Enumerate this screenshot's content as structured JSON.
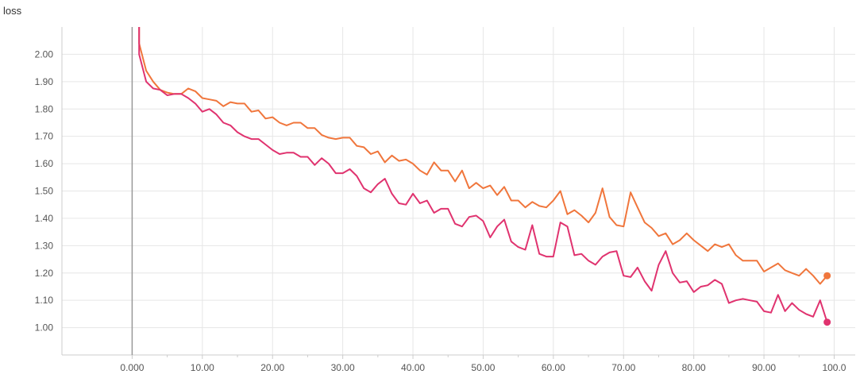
{
  "chart_data": {
    "type": "line",
    "title": "loss",
    "xlim": [
      -10,
      103
    ],
    "ylim": [
      0.9,
      2.1
    ],
    "x_ticks": [
      0,
      10,
      20,
      30,
      40,
      50,
      60,
      70,
      80,
      90,
      100
    ],
    "x_tick_labels": [
      "0.000",
      "10.00",
      "20.00",
      "30.00",
      "40.00",
      "50.00",
      "60.00",
      "70.00",
      "80.00",
      "90.00",
      "100.0"
    ],
    "y_ticks": [
      1.0,
      1.1,
      1.2,
      1.3,
      1.4,
      1.5,
      1.6,
      1.7,
      1.8,
      1.9,
      2.0
    ],
    "y_tick_labels": [
      "1.00",
      "1.10",
      "1.20",
      "1.30",
      "1.40",
      "1.50",
      "1.60",
      "1.70",
      "1.80",
      "1.90",
      "2.00"
    ],
    "grid": true,
    "series": [
      {
        "color": "#f0763c",
        "x": [
          1,
          2,
          3,
          4,
          5,
          6,
          7,
          8,
          9,
          10,
          11,
          12,
          13,
          14,
          15,
          16,
          17,
          18,
          19,
          20,
          21,
          22,
          23,
          24,
          25,
          26,
          27,
          28,
          29,
          30,
          31,
          32,
          33,
          34,
          35,
          36,
          37,
          38,
          39,
          40,
          41,
          42,
          43,
          44,
          45,
          46,
          47,
          48,
          49,
          50,
          51,
          52,
          53,
          54,
          55,
          56,
          57,
          58,
          59,
          60,
          61,
          62,
          63,
          64,
          65,
          66,
          67,
          68,
          69,
          70,
          71,
          72,
          73,
          74,
          75,
          76,
          77,
          78,
          79,
          80,
          81,
          82,
          83,
          84,
          85,
          86,
          87,
          88,
          89,
          90,
          91,
          92,
          93,
          94,
          95,
          96,
          97,
          98,
          99
        ],
        "y": [
          2.04,
          1.94,
          1.9,
          1.87,
          1.86,
          1.855,
          1.855,
          1.875,
          1.865,
          1.84,
          1.835,
          1.83,
          1.81,
          1.825,
          1.82,
          1.82,
          1.79,
          1.795,
          1.765,
          1.77,
          1.75,
          1.74,
          1.75,
          1.75,
          1.73,
          1.73,
          1.705,
          1.695,
          1.69,
          1.695,
          1.695,
          1.665,
          1.66,
          1.635,
          1.645,
          1.605,
          1.63,
          1.61,
          1.615,
          1.6,
          1.575,
          1.56,
          1.605,
          1.575,
          1.575,
          1.535,
          1.575,
          1.51,
          1.53,
          1.51,
          1.52,
          1.485,
          1.515,
          1.465,
          1.465,
          1.44,
          1.46,
          1.445,
          1.44,
          1.465,
          1.5,
          1.415,
          1.43,
          1.41,
          1.385,
          1.42,
          1.51,
          1.405,
          1.375,
          1.37,
          1.495,
          1.44,
          1.385,
          1.365,
          1.335,
          1.345,
          1.305,
          1.32,
          1.345,
          1.32,
          1.3,
          1.28,
          1.305,
          1.295,
          1.305,
          1.265,
          1.245,
          1.245,
          1.245,
          1.205,
          1.22,
          1.235,
          1.21,
          1.2,
          1.19,
          1.215,
          1.19,
          1.16,
          1.19
        ]
      },
      {
        "color": "#e0336f",
        "x": [
          1,
          2,
          3,
          4,
          5,
          6,
          7,
          8,
          9,
          10,
          11,
          12,
          13,
          14,
          15,
          16,
          17,
          18,
          19,
          20,
          21,
          22,
          23,
          24,
          25,
          26,
          27,
          28,
          29,
          30,
          31,
          32,
          33,
          34,
          35,
          36,
          37,
          38,
          39,
          40,
          41,
          42,
          43,
          44,
          45,
          46,
          47,
          48,
          49,
          50,
          51,
          52,
          53,
          54,
          55,
          56,
          57,
          58,
          59,
          60,
          61,
          62,
          63,
          64,
          65,
          66,
          67,
          68,
          69,
          70,
          71,
          72,
          73,
          74,
          75,
          76,
          77,
          78,
          79,
          80,
          81,
          82,
          83,
          84,
          85,
          86,
          87,
          88,
          89,
          90,
          91,
          92,
          93,
          94,
          95,
          96,
          97,
          98,
          99
        ],
        "y": [
          2.0,
          1.9,
          1.875,
          1.87,
          1.85,
          1.855,
          1.855,
          1.84,
          1.82,
          1.79,
          1.8,
          1.78,
          1.75,
          1.74,
          1.715,
          1.7,
          1.69,
          1.69,
          1.67,
          1.65,
          1.635,
          1.64,
          1.64,
          1.625,
          1.625,
          1.595,
          1.62,
          1.6,
          1.565,
          1.565,
          1.58,
          1.555,
          1.51,
          1.495,
          1.525,
          1.545,
          1.49,
          1.455,
          1.45,
          1.49,
          1.455,
          1.465,
          1.42,
          1.435,
          1.435,
          1.38,
          1.37,
          1.405,
          1.41,
          1.39,
          1.33,
          1.37,
          1.395,
          1.315,
          1.295,
          1.285,
          1.375,
          1.27,
          1.26,
          1.26,
          1.385,
          1.37,
          1.265,
          1.27,
          1.245,
          1.23,
          1.26,
          1.275,
          1.28,
          1.19,
          1.185,
          1.22,
          1.17,
          1.135,
          1.23,
          1.28,
          1.2,
          1.165,
          1.17,
          1.13,
          1.15,
          1.155,
          1.175,
          1.16,
          1.09,
          1.1,
          1.105,
          1.1,
          1.095,
          1.06,
          1.055,
          1.12,
          1.06,
          1.09,
          1.065,
          1.05,
          1.04,
          1.1,
          1.02
        ]
      }
    ]
  }
}
